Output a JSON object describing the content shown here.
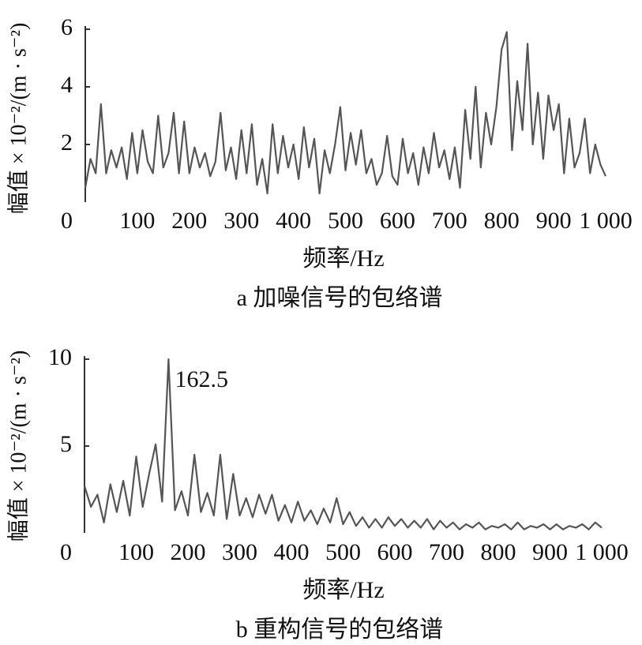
{
  "chart_data": [
    {
      "type": "line",
      "caption": "a 加噪信号的包络谱",
      "x_label": "频率/Hz",
      "y_label": "幅值 × 10⁻²/(m · s⁻²)",
      "color": "#555555",
      "x": [
        0,
        10,
        20,
        30,
        40,
        50,
        60,
        70,
        80,
        90,
        100,
        110,
        120,
        130,
        140,
        150,
        160,
        170,
        180,
        190,
        200,
        210,
        220,
        230,
        240,
        250,
        260,
        270,
        280,
        290,
        300,
        310,
        320,
        330,
        340,
        350,
        360,
        370,
        380,
        390,
        400,
        410,
        420,
        430,
        440,
        450,
        460,
        470,
        480,
        490,
        500,
        510,
        520,
        530,
        540,
        550,
        560,
        570,
        580,
        590,
        600,
        610,
        620,
        630,
        640,
        650,
        660,
        670,
        680,
        690,
        700,
        710,
        720,
        730,
        740,
        750,
        760,
        770,
        780,
        790,
        800,
        810,
        820,
        830,
        840,
        850,
        860,
        870,
        880,
        890,
        900,
        910,
        920,
        930,
        940,
        950,
        960,
        970,
        980,
        990,
        1000
      ],
      "values": [
        0.5,
        1.5,
        1.0,
        3.4,
        1.0,
        1.8,
        1.2,
        1.9,
        0.8,
        2.4,
        1.0,
        2.5,
        1.4,
        1.0,
        3.0,
        1.2,
        1.7,
        3.1,
        1.0,
        2.8,
        1.0,
        1.9,
        1.2,
        1.7,
        0.9,
        1.4,
        3.1,
        1.1,
        1.9,
        0.8,
        2.5,
        1.0,
        2.7,
        0.6,
        1.5,
        0.3,
        2.7,
        1.0,
        2.3,
        1.2,
        2.0,
        0.8,
        2.6,
        1.2,
        2.2,
        0.3,
        1.8,
        1.0,
        2.0,
        3.3,
        1.1,
        2.4,
        1.3,
        2.5,
        1.0,
        1.5,
        0.6,
        1.0,
        2.3,
        0.9,
        0.6,
        2.2,
        1.0,
        1.7,
        0.6,
        1.9,
        1.0,
        2.4,
        1.2,
        1.8,
        0.8,
        1.9,
        0.5,
        3.2,
        1.5,
        4.0,
        1.2,
        3.1,
        2.0,
        3.3,
        5.3,
        5.9,
        1.8,
        4.2,
        2.5,
        5.5,
        2.0,
        3.8,
        1.5,
        3.7,
        2.5,
        3.4,
        1.0,
        2.9,
        1.2,
        1.7,
        2.9,
        1.0,
        2.0,
        1.3,
        0.9
      ],
      "xlim": [
        0,
        1000
      ],
      "ylim": [
        0,
        6
      ],
      "xticks": [
        0,
        100,
        200,
        300,
        400,
        500,
        600,
        700,
        800,
        900,
        {
          "value": 1000,
          "label": "1 000"
        }
      ],
      "yticks": [
        2,
        4,
        6
      ]
    },
    {
      "type": "line",
      "caption": "b 重构信号的包络谱",
      "x_label": "频率/Hz",
      "y_label": "幅值 × 10⁻²/(m · s⁻²)",
      "color": "#555555",
      "x": [
        0,
        12.5,
        25,
        37.5,
        50,
        62.5,
        75,
        87.5,
        100,
        112.5,
        125,
        137.5,
        150,
        162.5,
        175,
        187.5,
        200,
        212.5,
        225,
        237.5,
        250,
        262.5,
        275,
        287.5,
        300,
        312.5,
        325,
        337.5,
        350,
        362.5,
        375,
        387.5,
        400,
        412.5,
        425,
        437.5,
        450,
        462.5,
        475,
        487.5,
        500,
        512.5,
        525,
        537.5,
        550,
        562.5,
        575,
        587.5,
        600,
        612.5,
        625,
        637.5,
        650,
        662.5,
        675,
        687.5,
        700,
        712.5,
        725,
        737.5,
        750,
        762.5,
        775,
        787.5,
        800,
        812.5,
        825,
        837.5,
        850,
        862.5,
        875,
        887.5,
        900,
        912.5,
        925,
        937.5,
        950,
        962.5,
        975,
        987.5,
        1000
      ],
      "values": [
        2.7,
        1.5,
        2.2,
        0.6,
        2.8,
        1.2,
        3.0,
        1.0,
        4.4,
        1.5,
        3.4,
        5.1,
        1.8,
        10.0,
        1.3,
        2.4,
        1.0,
        4.5,
        1.2,
        2.3,
        1.0,
        4.5,
        0.8,
        3.4,
        1.0,
        2.0,
        0.9,
        2.2,
        1.1,
        2.2,
        0.7,
        1.6,
        0.6,
        1.8,
        0.7,
        1.3,
        0.5,
        1.4,
        0.6,
        2.0,
        0.5,
        1.2,
        0.4,
        0.9,
        0.3,
        0.8,
        0.3,
        0.9,
        0.4,
        0.8,
        0.3,
        0.7,
        0.3,
        0.8,
        0.2,
        0.7,
        0.3,
        0.6,
        0.2,
        0.5,
        0.3,
        0.6,
        0.2,
        0.4,
        0.3,
        0.5,
        0.2,
        0.6,
        0.2,
        0.4,
        0.3,
        0.5,
        0.2,
        0.5,
        0.2,
        0.4,
        0.3,
        0.5,
        0.2,
        0.6,
        0.3
      ],
      "annotations": [
        {
          "text": "162.5",
          "x": 162.5,
          "y": 10
        }
      ],
      "xlim": [
        0,
        1000
      ],
      "ylim": [
        0,
        10
      ],
      "xticks": [
        0,
        100,
        200,
        300,
        400,
        500,
        600,
        700,
        800,
        900,
        {
          "value": 1000,
          "label": "1 000"
        }
      ],
      "yticks": [
        5,
        10
      ]
    }
  ]
}
